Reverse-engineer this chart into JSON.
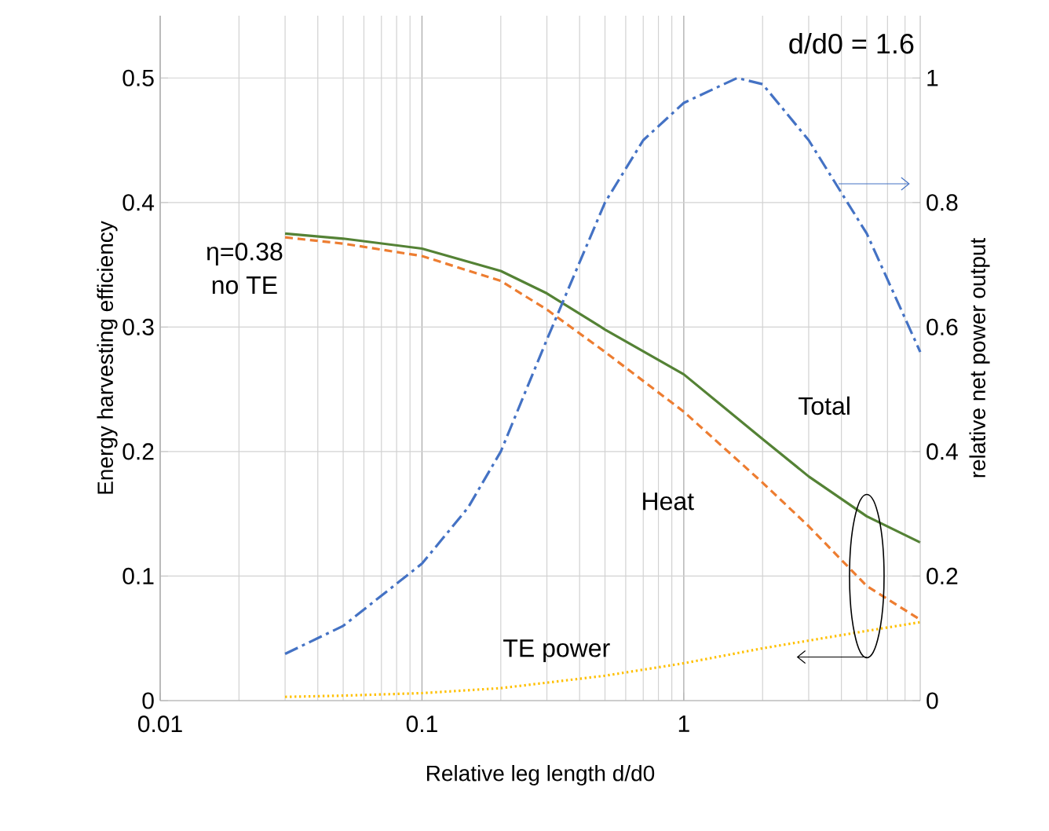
{
  "chart_data": {
    "type": "line",
    "xlabel": "Relative leg length d/d0",
    "ylabel": "Energy harvesting efficiency",
    "y2label": "relative net power output",
    "log": "x",
    "grid": true,
    "legend": false,
    "marker": "none",
    "xlim": [
      0.01,
      8
    ],
    "xticks": [
      0.01,
      0.1,
      1
    ],
    "ylim": [
      0,
      0.55
    ],
    "yticks": [
      0,
      0.1,
      0.2,
      0.3,
      0.4,
      0.5
    ],
    "y2lim": [
      0,
      1.1
    ],
    "y2ticks": [
      0,
      0.2,
      0.4,
      0.6,
      0.8,
      1
    ],
    "series": [
      {
        "name": "Total",
        "color": "#548235",
        "line_style": "solid",
        "x": [
          0.03,
          0.05,
          0.1,
          0.2,
          0.3,
          0.5,
          1,
          2,
          3,
          5,
          8
        ],
        "values": [
          0.375,
          0.371,
          0.363,
          0.345,
          0.327,
          0.298,
          0.262,
          0.21,
          0.18,
          0.148,
          0.127
        ]
      },
      {
        "name": "Heat",
        "color": "#ed7d31",
        "line_style": "dashed",
        "x": [
          0.03,
          0.05,
          0.1,
          0.2,
          0.3,
          0.5,
          1,
          2,
          3,
          5,
          8
        ],
        "values": [
          0.372,
          0.367,
          0.357,
          0.337,
          0.314,
          0.28,
          0.232,
          0.175,
          0.14,
          0.092,
          0.065
        ]
      },
      {
        "name": "TE power",
        "color": "#ffc000",
        "line_style": "dotted",
        "x": [
          0.03,
          0.05,
          0.1,
          0.2,
          0.5,
          1,
          2,
          5,
          8
        ],
        "values": [
          0.003,
          0.004,
          0.006,
          0.01,
          0.02,
          0.03,
          0.042,
          0.056,
          0.063
        ]
      },
      {
        "color": "#4472c4",
        "line_style": "dashdot",
        "axis": "y2",
        "x": [
          0.03,
          0.05,
          0.1,
          0.15,
          0.2,
          0.3,
          0.5,
          0.7,
          1,
          1.6,
          2,
          3,
          5,
          8
        ],
        "values": [
          0.075,
          0.12,
          0.22,
          0.31,
          0.4,
          0.58,
          0.8,
          0.9,
          0.96,
          1.0,
          0.99,
          0.9,
          0.75,
          0.56
        ]
      }
    ],
    "annotations": [
      "d/d0 = 1.6",
      "η=0.38",
      "no TE"
    ]
  }
}
